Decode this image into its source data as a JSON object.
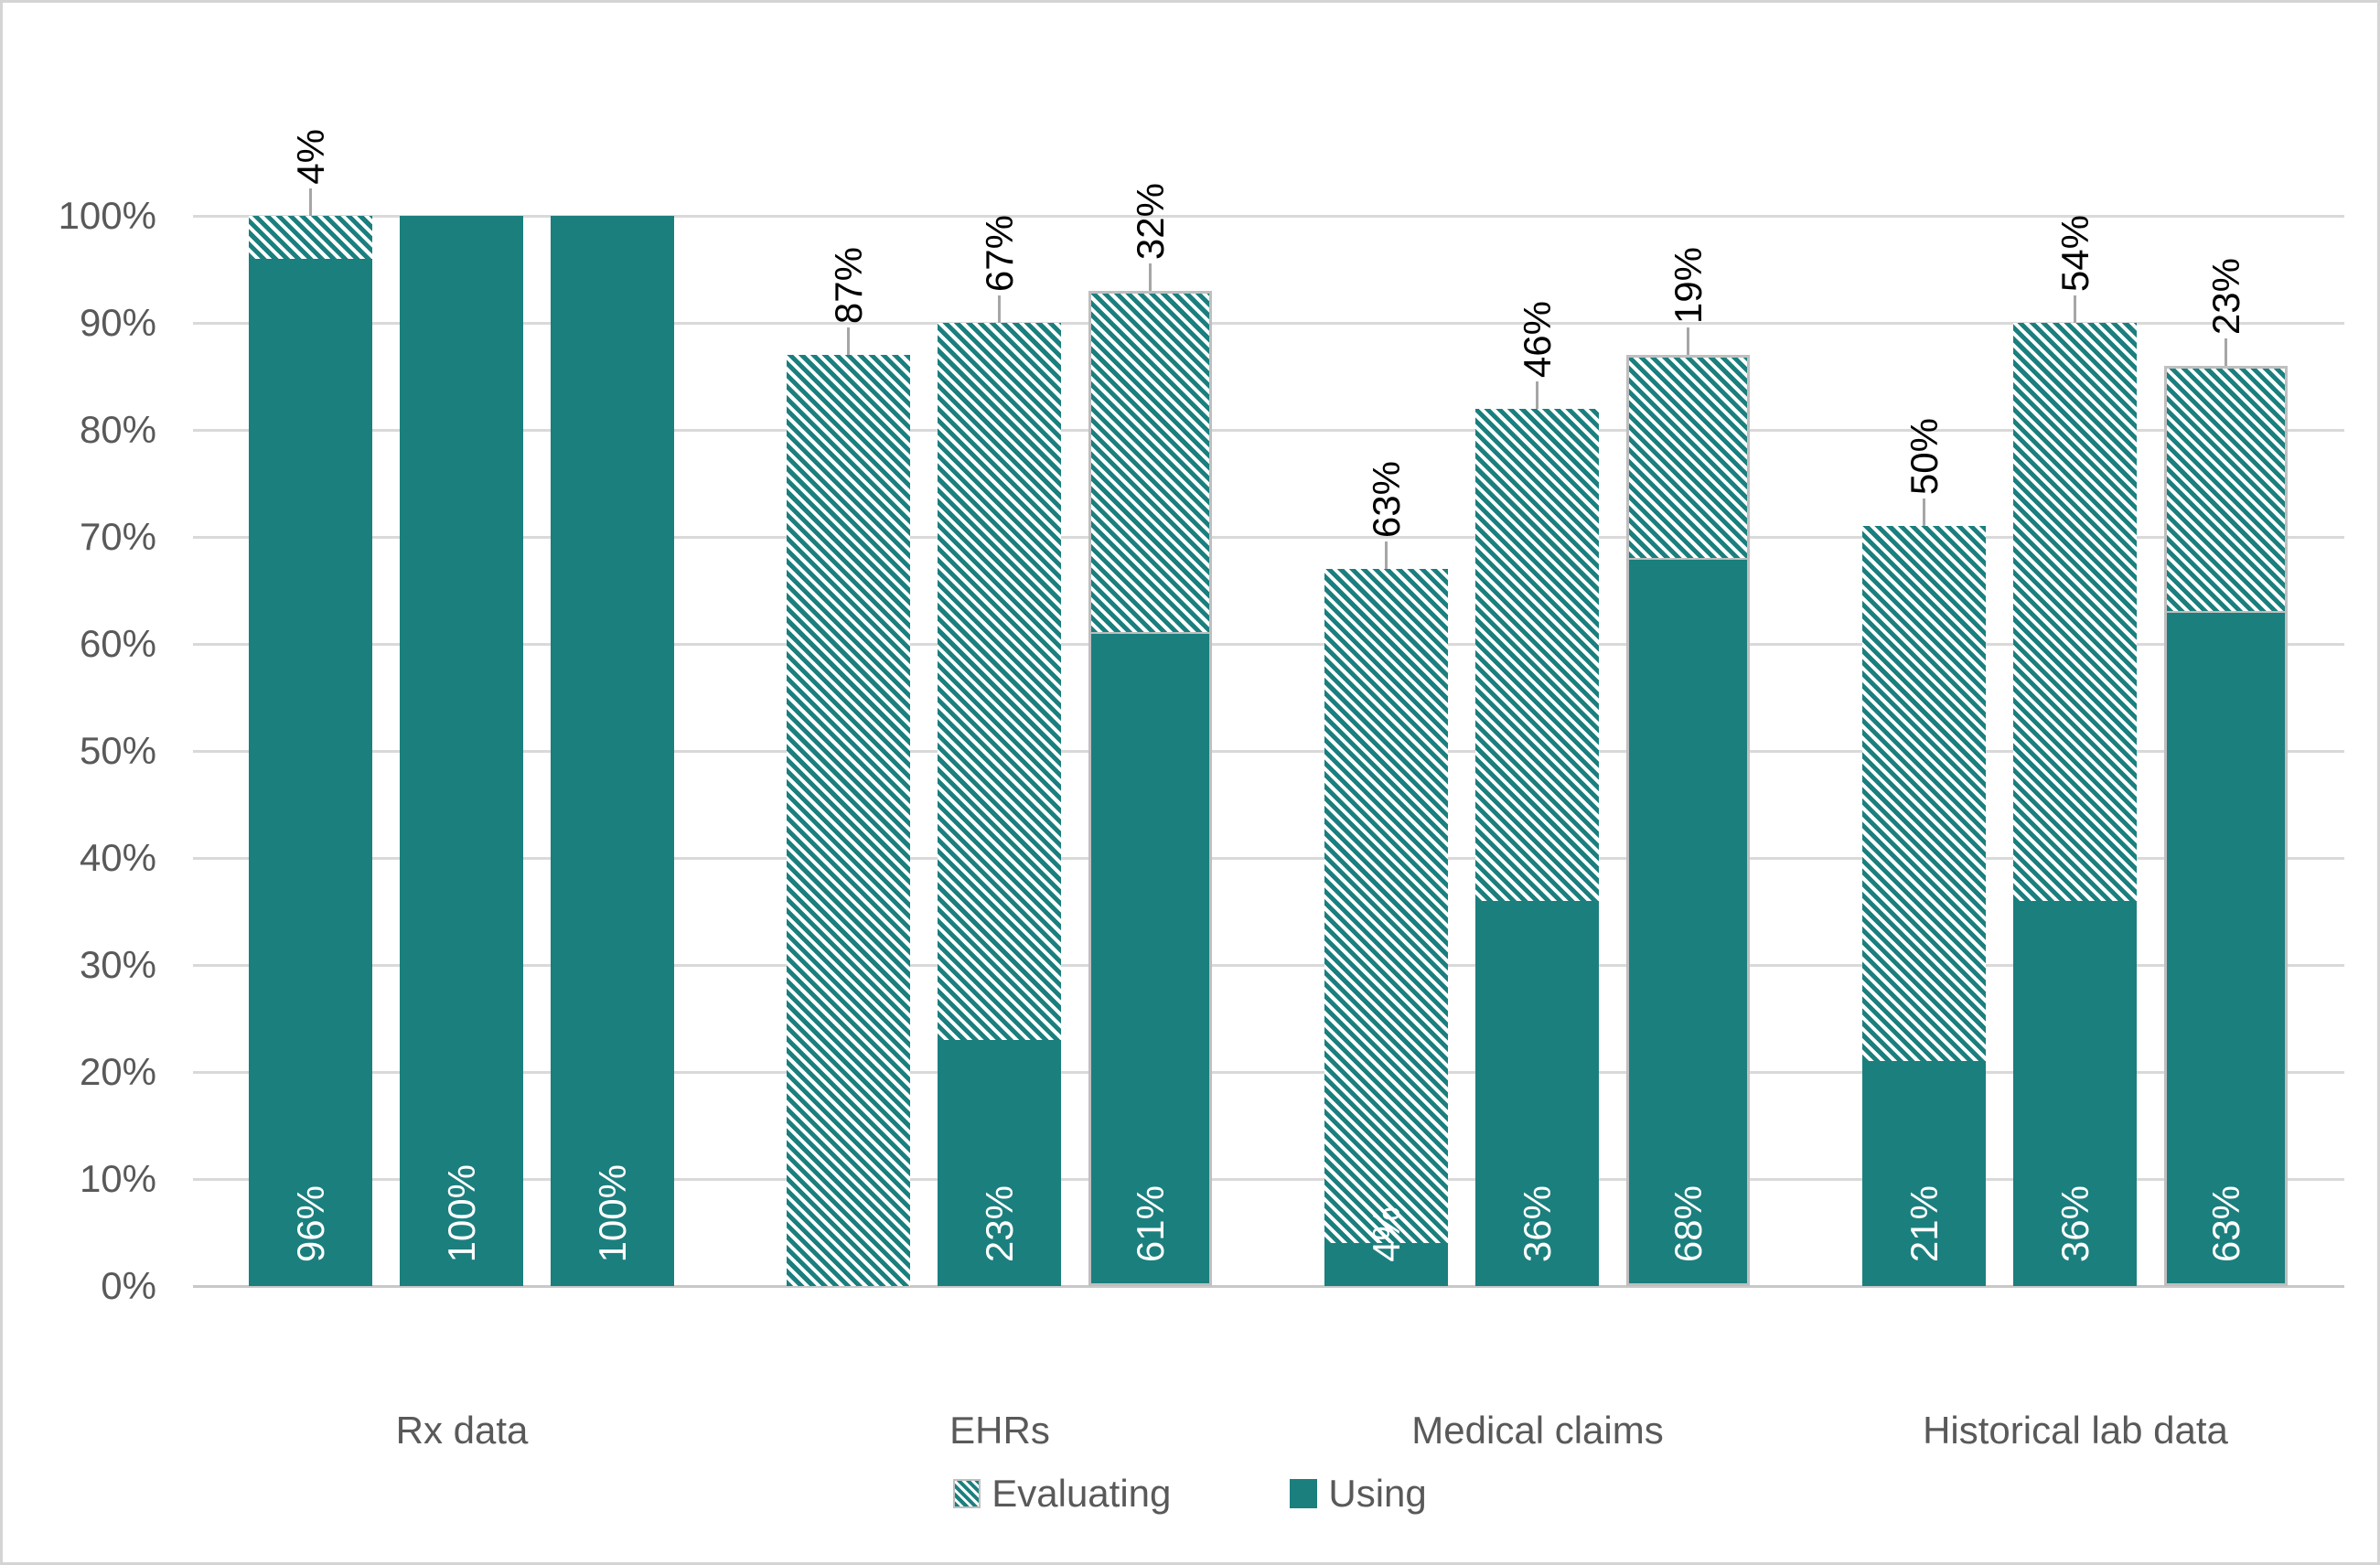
{
  "chart_data": {
    "type": "bar",
    "stacked": true,
    "title": "",
    "xlabel": "",
    "ylabel": "",
    "ylim": [
      0,
      100
    ],
    "ytick_step": 10,
    "yticks": [
      "0%",
      "10%",
      "20%",
      "30%",
      "40%",
      "50%",
      "60%",
      "70%",
      "80%",
      "90%",
      "100%"
    ],
    "grid": true,
    "legend_position": "bottom",
    "legend": [
      {
        "label": "Evaluating",
        "style": "hatched"
      },
      {
        "label": "Using",
        "style": "solid"
      }
    ],
    "categories": [
      "Rx data",
      "EHRs",
      "Medical claims",
      "Historical lab data"
    ],
    "groups": [
      {
        "category": "Rx data",
        "bars": [
          {
            "using": 96,
            "evaluating": 4,
            "using_label": "96%",
            "evaluating_label": "4%",
            "outlined": false
          },
          {
            "using": 100,
            "evaluating": 0,
            "using_label": "100%",
            "evaluating_label": "",
            "outlined": false
          },
          {
            "using": 100,
            "evaluating": 0,
            "using_label": "100%",
            "evaluating_label": "",
            "outlined": false
          }
        ]
      },
      {
        "category": "EHRs",
        "bars": [
          {
            "using": 0,
            "evaluating": 87,
            "using_label": "",
            "evaluating_label": "87%",
            "outlined": false
          },
          {
            "using": 23,
            "evaluating": 67,
            "using_label": "23%",
            "evaluating_label": "67%",
            "outlined": false
          },
          {
            "using": 61,
            "evaluating": 32,
            "using_label": "61%",
            "evaluating_label": "32%",
            "outlined": true
          }
        ]
      },
      {
        "category": "Medical claims",
        "bars": [
          {
            "using": 4,
            "evaluating": 63,
            "using_label": "4%",
            "evaluating_label": "63%",
            "outlined": false
          },
          {
            "using": 36,
            "evaluating": 46,
            "using_label": "36%",
            "evaluating_label": "46%",
            "outlined": false
          },
          {
            "using": 68,
            "evaluating": 19,
            "using_label": "68%",
            "evaluating_label": "19%",
            "outlined": true
          }
        ]
      },
      {
        "category": "Historical lab data",
        "bars": [
          {
            "using": 21,
            "evaluating": 50,
            "using_label": "21%",
            "evaluating_label": "50%",
            "outlined": false
          },
          {
            "using": 36,
            "evaluating": 54,
            "using_label": "36%",
            "evaluating_label": "54%",
            "outlined": false
          },
          {
            "using": 63,
            "evaluating": 23,
            "using_label": "63%",
            "evaluating_label": "23%",
            "outlined": true
          }
        ]
      }
    ],
    "colors": {
      "series_teal": "#1B7F7E",
      "axis_text": "#595959",
      "gridline": "#D9D9D9",
      "axis_line": "#C8C8C8",
      "bar_outline": "#BFBFBF",
      "leader_line": "#A6A6A6",
      "data_label_outside": "#000000",
      "data_label_inside": "#FFFFFF",
      "background": "#FFFFFF",
      "frame_border": "#D4D4D4"
    }
  }
}
